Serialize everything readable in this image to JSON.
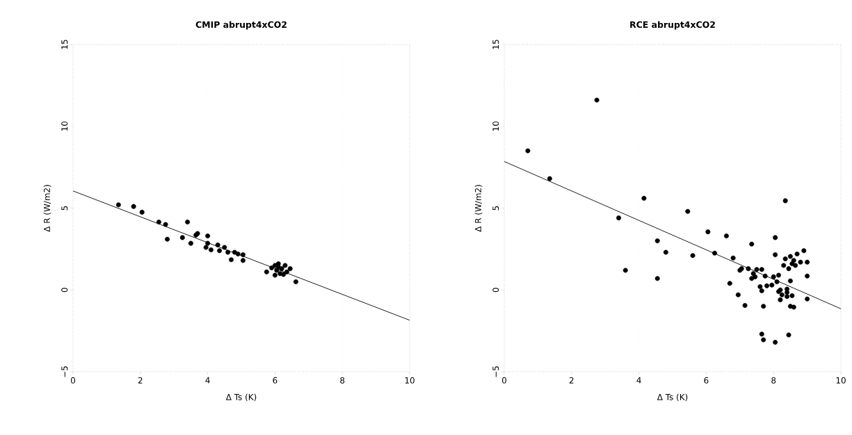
{
  "chart_data": [
    {
      "type": "scatter",
      "title": "CMIP abrupt4xCO2",
      "xlabel": "Δ Ts (K)",
      "ylabel": "Δ R (W/m2)",
      "xlim": [
        0,
        10
      ],
      "ylim": [
        -5,
        15
      ],
      "xticks": [
        0,
        2,
        4,
        6,
        8,
        10
      ],
      "yticks": [
        {
          "value": -5,
          "label": "−5"
        },
        0,
        5,
        10,
        15
      ],
      "grid": true,
      "marker": "circle",
      "series": [
        {
          "color": "#000000",
          "x": [
            1.35,
            1.8,
            2.05,
            2.55,
            2.75,
            2.8,
            3.25,
            3.4,
            3.5,
            3.65,
            3.7,
            3.95,
            4.0,
            4.0,
            4.1,
            4.3,
            4.35,
            4.5,
            4.6,
            4.7,
            4.8,
            4.9,
            5.05,
            5.05,
            5.75,
            5.9,
            6.0,
            6.05,
            6.1,
            6.15,
            6.0,
            6.2,
            6.3,
            6.35,
            6.45,
            6.1,
            6.25,
            6.62
          ],
          "values": [
            5.2,
            5.1,
            4.75,
            4.15,
            4.0,
            3.1,
            3.2,
            4.15,
            2.85,
            3.35,
            3.45,
            2.6,
            3.3,
            2.85,
            2.45,
            2.75,
            2.4,
            2.6,
            2.3,
            1.85,
            2.3,
            2.2,
            2.15,
            1.8,
            1.1,
            1.35,
            1.5,
            1.2,
            1.6,
            1.0,
            0.9,
            1.3,
            1.5,
            1.1,
            1.3,
            1.4,
            0.95,
            0.5
          ]
        },
        {
          "type": "line",
          "color": "#000000",
          "marker": "none",
          "x": [
            0,
            10
          ],
          "values": [
            6.05,
            -1.85
          ]
        }
      ]
    },
    {
      "type": "scatter",
      "title": "RCE abrupt4xCO2",
      "xlabel": "Δ Ts (K)",
      "ylabel": "Δ R (W/m2)",
      "xlim": [
        0,
        10
      ],
      "ylim": [
        -5,
        15
      ],
      "xticks": [
        0,
        2,
        4,
        6,
        8,
        10
      ],
      "yticks": [
        {
          "value": -5,
          "label": "−5"
        },
        0,
        5,
        10,
        15
      ],
      "grid": true,
      "marker": "circle",
      "series": [
        {
          "color": "#000000",
          "x": [
            0.7,
            1.35,
            2.75,
            3.4,
            3.6,
            4.15,
            4.55,
            4.55,
            4.8,
            5.45,
            5.6,
            6.05,
            6.25,
            6.6,
            6.7,
            6.8,
            6.95,
            7.0,
            7.05,
            7.15,
            7.25,
            7.35,
            7.35,
            7.4,
            7.45,
            7.5,
            7.6,
            7.65,
            7.65,
            7.65,
            7.7,
            7.7,
            7.75,
            7.8,
            7.95,
            8.0,
            8.05,
            8.05,
            8.05,
            8.1,
            8.15,
            8.15,
            8.2,
            8.25,
            8.3,
            8.35,
            8.35,
            8.4,
            8.4,
            8.45,
            8.45,
            8.5,
            8.5,
            8.5,
            8.55,
            8.55,
            8.6,
            8.6,
            8.65,
            8.7,
            8.8,
            8.9,
            9.0,
            9.0,
            9.0,
            8.4,
            8.2
          ],
          "values": [
            8.5,
            6.8,
            11.6,
            4.4,
            1.2,
            5.6,
            3.0,
            0.7,
            2.3,
            4.8,
            2.1,
            3.55,
            2.25,
            3.3,
            0.4,
            1.95,
            -0.3,
            1.2,
            1.3,
            -0.95,
            1.3,
            0.7,
            2.8,
            1.0,
            0.8,
            1.25,
            0.2,
            -0.05,
            1.25,
            -2.7,
            -3.05,
            -1.0,
            0.85,
            0.25,
            0.3,
            0.8,
            3.2,
            2.15,
            -3.2,
            0.5,
            0.9,
            -0.1,
            -0.6,
            -0.3,
            1.5,
            5.45,
            1.9,
            0.05,
            -0.4,
            1.3,
            -2.75,
            2.05,
            0.55,
            -1.0,
            1.6,
            -0.35,
            -1.05,
            1.8,
            1.5,
            2.2,
            1.7,
            2.4,
            1.7,
            0.85,
            -0.55,
            -0.15,
            0.0
          ]
        },
        {
          "type": "line",
          "color": "#000000",
          "marker": "none",
          "x": [
            0,
            10
          ],
          "values": [
            7.85,
            -1.15
          ]
        }
      ]
    }
  ]
}
